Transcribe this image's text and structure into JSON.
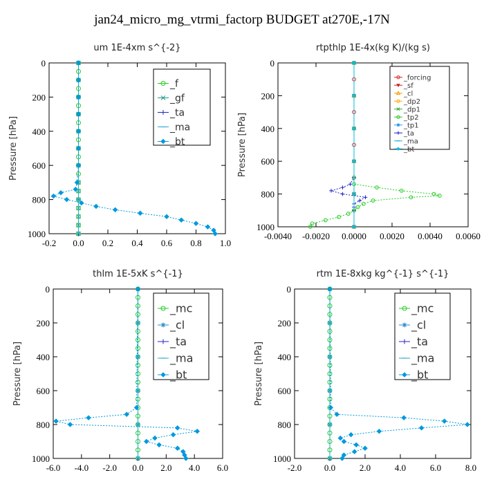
{
  "title": "jan24_micro_mg_vtrmi_factorp  BUDGET at270E,-17N",
  "chart_data": [
    {
      "type": "line",
      "title": "um   1E-4xm s^{-2}",
      "ylabel": "Pressure [hPa]",
      "xlim": [
        -0.2,
        1.0
      ],
      "ylim": [
        1000,
        0
      ],
      "xticks": [
        -0.2,
        0.0,
        0.2,
        0.4,
        0.6,
        0.8,
        1.0
      ],
      "xtick_labels": [
        "-0.2",
        "0.0",
        "0.2",
        "0.4",
        "0.6",
        "0.8",
        "1.0"
      ],
      "yticks": [
        0,
        200,
        400,
        600,
        800,
        1000
      ],
      "ytick_labels": [
        "0",
        "200",
        "400",
        "600",
        "800",
        "1000"
      ],
      "legend_position": "top-right",
      "series": [
        {
          "name": "_f",
          "color": "#22cc22",
          "marker": "circle",
          "y": [
            0,
            50,
            100,
            150,
            200,
            250,
            300,
            350,
            400,
            450,
            500,
            550,
            600,
            650,
            700,
            750,
            800,
            850,
            900,
            950,
            1000
          ],
          "x": [
            0,
            0,
            0,
            0,
            0,
            0,
            0,
            0,
            0,
            0,
            0,
            0,
            0,
            0,
            0,
            0,
            0,
            0,
            0,
            0,
            0
          ]
        },
        {
          "name": "_gf",
          "color": "#229988",
          "marker": "x",
          "y": [
            0,
            100,
            200,
            300,
            400,
            500,
            600,
            700,
            750,
            800,
            850,
            900,
            950,
            1000
          ],
          "x": [
            0,
            0,
            0,
            0,
            0,
            0,
            0,
            0,
            0,
            0,
            0,
            0,
            0,
            0
          ]
        },
        {
          "name": "_ta",
          "color": "#2222cc",
          "marker": "plus",
          "y": [
            0,
            200,
            400,
            600,
            800,
            1000
          ],
          "x": [
            0,
            0,
            0,
            0,
            0,
            0
          ]
        },
        {
          "name": "_ma",
          "color": "#22aacc",
          "marker": "dash",
          "y": [
            0,
            200,
            400,
            600,
            800,
            1000
          ],
          "x": [
            0,
            0,
            0,
            0,
            0,
            0
          ]
        },
        {
          "name": "_bt",
          "color": "#0099dd",
          "marker": "diamond",
          "dashed": true,
          "y": [
            0,
            100,
            200,
            300,
            400,
            500,
            600,
            700,
            740,
            760,
            780,
            800,
            820,
            840,
            860,
            880,
            900,
            920,
            940,
            960,
            980,
            1000
          ],
          "x": [
            0,
            0,
            0,
            0,
            0,
            0,
            0,
            -0.01,
            -0.02,
            -0.12,
            -0.17,
            -0.08,
            0.02,
            0.12,
            0.25,
            0.42,
            0.6,
            0.7,
            0.8,
            0.88,
            0.92,
            0.93
          ]
        }
      ]
    },
    {
      "type": "line",
      "title": "rtpthlp   1E-4x(kg K)/(kg s)",
      "ylabel": "Pressure [hPa]",
      "xlim": [
        -0.004,
        0.006
      ],
      "ylim": [
        1000,
        0
      ],
      "xticks": [
        -0.004,
        -0.002,
        0.0,
        0.002,
        0.004,
        0.006
      ],
      "xtick_labels": [
        "-0.0040",
        "-0.0020",
        "0.0000",
        "0.0020",
        "0.0040",
        "0.0060"
      ],
      "yticks": [
        0,
        200,
        400,
        600,
        800,
        1000
      ],
      "ytick_labels": [
        "0",
        "200",
        "400",
        "600",
        "800",
        "1000"
      ],
      "legend_position": "top-right",
      "series": [
        {
          "name": "_forcing",
          "color": "#dd2222",
          "marker": "circle",
          "y": [
            0,
            100,
            200,
            300,
            400,
            500,
            600,
            700,
            800,
            900,
            1000
          ],
          "x": [
            0,
            0,
            0,
            0,
            0,
            0,
            0,
            0,
            0,
            0,
            0
          ]
        },
        {
          "name": "_sf",
          "color": "#cc2222",
          "marker": "triangle-down",
          "y": [
            0,
            200,
            400,
            600,
            800,
            1000
          ],
          "x": [
            0,
            0,
            0,
            0,
            0,
            0
          ]
        },
        {
          "name": "_cl",
          "color": "#ff9900",
          "marker": "triangle",
          "y": [
            0,
            200,
            400,
            600,
            800,
            1000
          ],
          "x": [
            0,
            0,
            0,
            0,
            0,
            0
          ]
        },
        {
          "name": "_dp2",
          "color": "#ffaa00",
          "marker": "circle",
          "y": [
            0,
            200,
            400,
            600,
            800,
            1000
          ],
          "x": [
            0,
            0,
            0,
            0,
            0,
            0
          ]
        },
        {
          "name": "_dp1",
          "color": "#33aa33",
          "marker": "x",
          "y": [
            0,
            200,
            400,
            600,
            800,
            1000
          ],
          "x": [
            0,
            0,
            0,
            0,
            0,
            0
          ]
        },
        {
          "name": "_tp2",
          "color": "#22cc22",
          "marker": "circle",
          "dashed": true,
          "y": [
            0,
            700,
            740,
            760,
            780,
            800,
            810,
            820,
            840,
            860,
            880,
            900,
            920,
            940,
            960,
            980,
            1000
          ],
          "x": [
            0,
            0,
            0,
            0.0012,
            0.0025,
            0.0042,
            0.0045,
            0.003,
            0.001,
            0.0005,
            0.0002,
            0,
            -0.0003,
            -0.0008,
            -0.0015,
            -0.0022,
            -0.0023
          ]
        },
        {
          "name": "_tp1",
          "color": "#2299ee",
          "marker": "star",
          "y": [
            0,
            200,
            400,
            600,
            800,
            1000
          ],
          "x": [
            0,
            0,
            0,
            0,
            0,
            0
          ]
        },
        {
          "name": "_ta",
          "color": "#2222cc",
          "marker": "plus",
          "dashed": true,
          "y": [
            0,
            700,
            740,
            760,
            780,
            800,
            820,
            840,
            860,
            880,
            900,
            1000
          ],
          "x": [
            0,
            0,
            -0.0002,
            -0.0006,
            -0.0012,
            -0.0006,
            0.0006,
            0.0003,
            0,
            0,
            0,
            0
          ]
        },
        {
          "name": "_ma",
          "color": "#22aacc",
          "marker": "dash",
          "y": [
            0,
            200,
            400,
            600,
            800,
            1000
          ],
          "x": [
            0,
            0,
            0,
            0,
            0,
            0
          ]
        },
        {
          "name": "_bt",
          "color": "#00bbdd",
          "marker": "diamond",
          "y": [
            0,
            200,
            400,
            600,
            800,
            1000
          ],
          "x": [
            0,
            0,
            0,
            0,
            0,
            0
          ]
        }
      ]
    },
    {
      "type": "line",
      "title": "thlm   1E-5xK  s^{-1}",
      "ylabel": "Pressure [hPa]",
      "xlim": [
        -6.0,
        6.0
      ],
      "ylim": [
        1000,
        0
      ],
      "xticks": [
        -6,
        -4,
        -2,
        0,
        2,
        4,
        6
      ],
      "xtick_labels": [
        "-6.0",
        "-4.0",
        "-2.0",
        "0.0",
        "2.0",
        "4.0",
        "6.0"
      ],
      "yticks": [
        0,
        200,
        400,
        600,
        800,
        1000
      ],
      "ytick_labels": [
        "0",
        "200",
        "400",
        "600",
        "800",
        "1000"
      ],
      "legend_position": "top-right",
      "series": [
        {
          "name": "_mc",
          "color": "#22cc22",
          "marker": "circle",
          "y": [
            0,
            50,
            100,
            150,
            200,
            250,
            300,
            350,
            400,
            450,
            500,
            550,
            600,
            650,
            700,
            750,
            800,
            850,
            900,
            950,
            1000
          ],
          "x": [
            0,
            0,
            0,
            0,
            0,
            0,
            0,
            0,
            0,
            0,
            0,
            0,
            0,
            0,
            0,
            0,
            0,
            0,
            0,
            0,
            0
          ]
        },
        {
          "name": "_cl",
          "color": "#2288cc",
          "marker": "star",
          "y": [
            0,
            200,
            400,
            600,
            800,
            1000
          ],
          "x": [
            0,
            0,
            0,
            0,
            0,
            0
          ]
        },
        {
          "name": "_ta",
          "color": "#2222cc",
          "marker": "plus",
          "y": [
            0,
            200,
            400,
            600,
            800,
            1000
          ],
          "x": [
            0,
            0,
            0,
            0,
            0,
            0
          ]
        },
        {
          "name": "_ma",
          "color": "#22aacc",
          "marker": "dash",
          "y": [
            0,
            200,
            400,
            600,
            800,
            1000
          ],
          "x": [
            0,
            0,
            0,
            0,
            0,
            0
          ]
        },
        {
          "name": "_bt",
          "color": "#0099dd",
          "marker": "diamond",
          "dashed": true,
          "y": [
            0,
            700,
            740,
            760,
            780,
            800,
            820,
            840,
            860,
            880,
            900,
            920,
            940,
            960,
            980,
            1000
          ],
          "x": [
            0,
            -0.1,
            -0.8,
            -3.5,
            -5.8,
            -4.8,
            2.8,
            4.2,
            2.5,
            1.2,
            0.6,
            1.5,
            2.8,
            3.2,
            3.3,
            3.4
          ]
        }
      ]
    },
    {
      "type": "line",
      "title": "rtm   1E-8xkg kg^{-1} s^{-1}",
      "ylabel": "Pressure [hPa]",
      "xlim": [
        -2.0,
        8.0
      ],
      "ylim": [
        1000,
        0
      ],
      "xticks": [
        -2,
        0,
        2,
        4,
        6,
        8
      ],
      "xtick_labels": [
        "-2.0",
        "0.0",
        "2.0",
        "4.0",
        "6.0",
        "8.0"
      ],
      "yticks": [
        0,
        200,
        400,
        600,
        800,
        1000
      ],
      "ytick_labels": [
        "0",
        "200",
        "400",
        "600",
        "800",
        "1000"
      ],
      "legend_position": "top-right",
      "series": [
        {
          "name": "_mc",
          "color": "#22cc22",
          "marker": "circle",
          "y": [
            0,
            50,
            100,
            150,
            200,
            250,
            300,
            350,
            400,
            450,
            500,
            550,
            600,
            650,
            700,
            750,
            800,
            850,
            900,
            950,
            1000
          ],
          "x": [
            0,
            0,
            0,
            0,
            0,
            0,
            0,
            0,
            0,
            0,
            0,
            0,
            0,
            0,
            0,
            0,
            0,
            0,
            0,
            0,
            0
          ]
        },
        {
          "name": "_cl",
          "color": "#2288cc",
          "marker": "star",
          "y": [
            0,
            200,
            400,
            600,
            800,
            1000
          ],
          "x": [
            0,
            0,
            0,
            0,
            0,
            0
          ]
        },
        {
          "name": "_ta",
          "color": "#2222cc",
          "marker": "plus",
          "y": [
            0,
            200,
            400,
            600,
            800,
            1000
          ],
          "x": [
            0,
            0,
            0,
            0,
            0,
            0
          ]
        },
        {
          "name": "_ma",
          "color": "#22aacc",
          "marker": "dash",
          "y": [
            0,
            200,
            400,
            600,
            800,
            1000
          ],
          "x": [
            0,
            0,
            0,
            0,
            0,
            0
          ]
        },
        {
          "name": "_bt",
          "color": "#0099dd",
          "marker": "diamond",
          "dashed": true,
          "y": [
            0,
            700,
            740,
            760,
            780,
            800,
            820,
            840,
            860,
            880,
            900,
            920,
            940,
            960,
            980,
            1000
          ],
          "x": [
            0,
            0.05,
            0.4,
            4.2,
            6.5,
            7.8,
            5.2,
            2.8,
            1.2,
            0.6,
            0.8,
            1.5,
            2.0,
            1.4,
            0.8,
            0.7
          ]
        }
      ]
    }
  ]
}
